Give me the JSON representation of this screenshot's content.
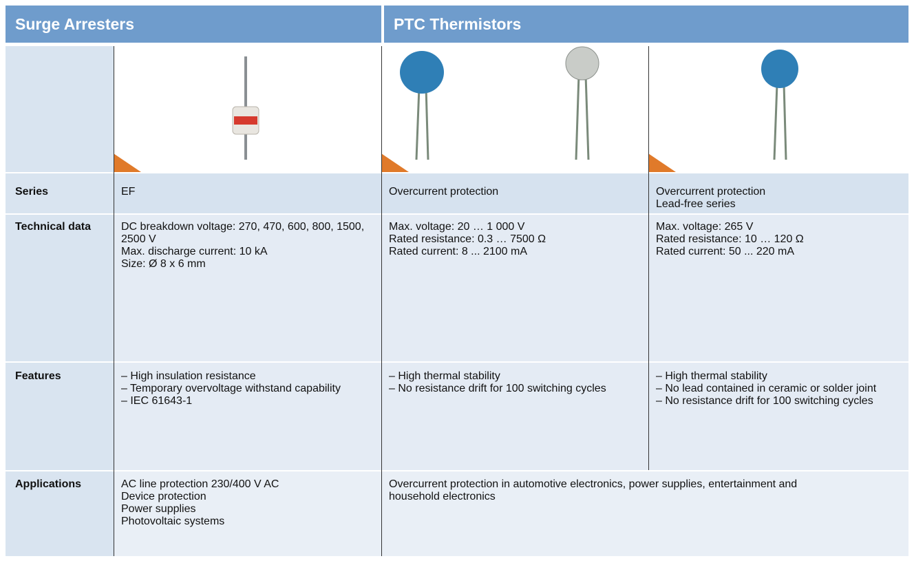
{
  "header": {
    "left_title": "Surge Arresters",
    "right_title": "PTC Thermistors"
  },
  "rows": [
    {
      "label": "Series",
      "cells": [
        {
          "lines": [
            "EF"
          ]
        },
        {
          "lines": [
            "Overcurrent protection"
          ]
        },
        {
          "lines": [
            "Overcurrent protection",
            "Lead-free series"
          ]
        }
      ]
    },
    {
      "label": "Technical data",
      "cells": [
        {
          "lines": [
            "DC breakdown voltage: 270, 470, 600, 800, 1500, 2500 V",
            "Max. discharge current: 10 kA",
            "Size: Ø 8 x 6 mm"
          ]
        },
        {
          "lines": [
            "Max. voltage: 20 … 1 000 V",
            "Rated resistance: 0.3 … 7500 Ω",
            "Rated current: 8 ... 2100 mA"
          ]
        },
        {
          "lines": [
            "Max. voltage: 265 V",
            "Rated resistance: 10 … 120 Ω",
            "Rated current: 50 ... 220 mA"
          ]
        }
      ]
    },
    {
      "label": "Features",
      "cells": [
        {
          "bullets": [
            "– High insulation resistance",
            "– Temporary overvoltage withstand capability",
            "– IEC 61643-1"
          ]
        },
        {
          "bullets": [
            "– High thermal stability",
            "– No resistance drift for 100 switching cycles"
          ]
        },
        {
          "bullets": [
            "– High thermal stability",
            "– No lead contained in ceramic or solder joint",
            "– No resistance drift for 100 switching cycles"
          ]
        }
      ]
    },
    {
      "label": "Applications",
      "cells": [
        {
          "lines": [
            "AC line protection 230/400 V AC",
            "Device protection",
            "Power supplies",
            "Photovoltaic systems"
          ]
        },
        {
          "lines": [
            "Overcurrent protection in automotive electronics, power supplies, entertainment and household electronics"
          ],
          "span": 2
        }
      ]
    }
  ]
}
